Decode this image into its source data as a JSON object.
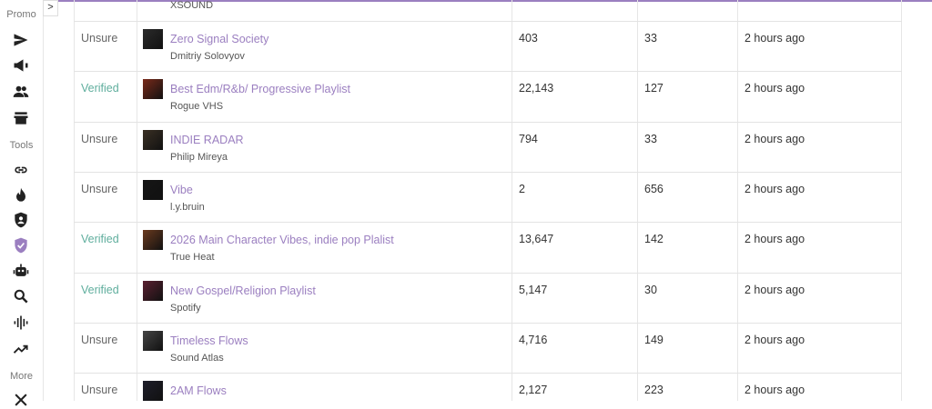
{
  "sidebar": {
    "sections": [
      "Promo",
      "Tools",
      "More"
    ]
  },
  "table": {
    "partial_row": {
      "subtitle": "XSOUND"
    },
    "rows": [
      {
        "status": "Unsure",
        "title": "Zero Signal Society",
        "subtitle": "Dmitriy Solovyov",
        "followers": "403",
        "count": "33",
        "time": "2 hours ago"
      },
      {
        "status": "Verified",
        "title": "Best Edm/R&b/ Progressive Playlist",
        "subtitle": "Rogue VHS",
        "followers": "22,143",
        "count": "127",
        "time": "2 hours ago"
      },
      {
        "status": "Unsure",
        "title": "INDIE RADAR",
        "subtitle": "Philip Mireya",
        "followers": "794",
        "count": "33",
        "time": "2 hours ago"
      },
      {
        "status": "Unsure",
        "title": "Vibe",
        "subtitle": "l.y.bruin",
        "followers": "2",
        "count": "656",
        "time": "2 hours ago"
      },
      {
        "status": "Verified",
        "title": "2026 Main Character Vibes, indie pop Plalist",
        "subtitle": "True Heat",
        "followers": "13,647",
        "count": "142",
        "time": "2 hours ago"
      },
      {
        "status": "Verified",
        "title": "New Gospel/Religion Playlist",
        "subtitle": "Spotify",
        "followers": "5,147",
        "count": "30",
        "time": "2 hours ago"
      },
      {
        "status": "Unsure",
        "title": "Timeless Flows",
        "subtitle": "Sound Atlas",
        "followers": "4,716",
        "count": "149",
        "time": "2 hours ago"
      },
      {
        "status": "Unsure",
        "title": "2AM Flows",
        "subtitle": "",
        "followers": "2,127",
        "count": "223",
        "time": "2 hours ago"
      }
    ]
  }
}
